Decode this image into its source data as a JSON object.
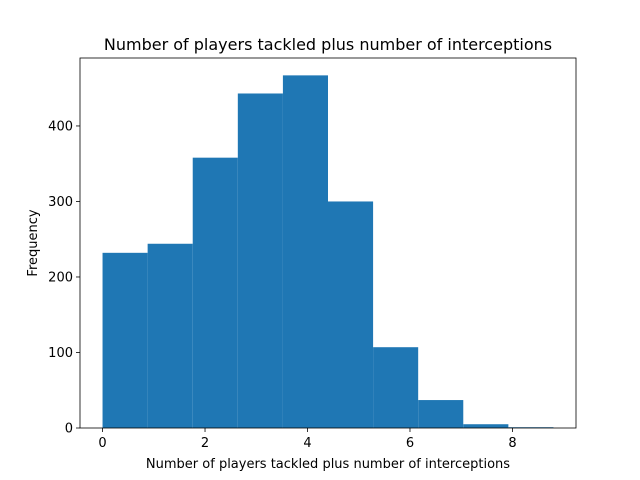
{
  "chart_data": {
    "type": "bar",
    "title": "Number of players tackled plus number of interceptions",
    "xlabel": "Number of players tackled plus number of interceptions",
    "ylabel": "Frequency",
    "bin_edges": [
      0,
      0.88,
      1.76,
      2.64,
      3.52,
      4.4,
      5.28,
      6.16,
      7.04,
      7.92,
      8.8
    ],
    "values": [
      232,
      244,
      358,
      443,
      467,
      300,
      107,
      37,
      5,
      1
    ],
    "xlim": [
      -0.44,
      9.24
    ],
    "ylim": [
      0,
      490
    ],
    "xticks": [
      0,
      2,
      4,
      6,
      8
    ],
    "yticks": [
      0,
      100,
      200,
      300,
      400
    ],
    "grid": false,
    "bar_color": "#1f77b4"
  }
}
